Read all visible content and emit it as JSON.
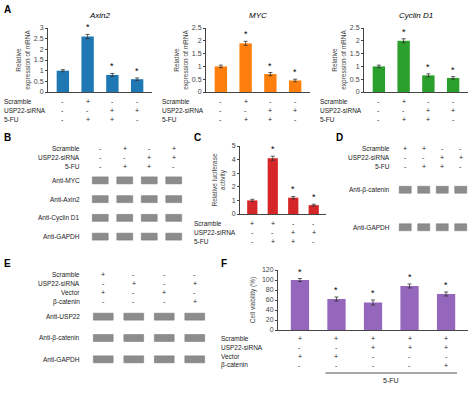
{
  "chart_data": [
    {
      "type": "bar",
      "panel_label": "A",
      "title": "Axin2",
      "y_label": "Relative expression of mRNA",
      "categories": [
        null,
        null,
        null,
        null
      ],
      "values": [
        1.0,
        2.6,
        0.8,
        0.6
      ],
      "errors": [
        0.05,
        0.1,
        0.07,
        0.06
      ],
      "ylim": [
        0,
        3.0
      ],
      "yticks": [
        0,
        0.5,
        1,
        1.5,
        2,
        2.5,
        3
      ],
      "grid": false,
      "tick_labels": "y",
      "annotations": [
        {
          "x": 1,
          "text": "*"
        },
        {
          "x": 2,
          "text": "*"
        },
        {
          "x": 3,
          "text": "*"
        }
      ],
      "conditions": [
        {
          "label": "Scramble",
          "values": [
            "-",
            "+",
            "-",
            "-"
          ]
        },
        {
          "label": "USP22-siRNA",
          "values": [
            "-",
            "-",
            "+",
            "+"
          ]
        },
        {
          "label": "5-FU",
          "values": [
            "-",
            "+",
            "+",
            "-"
          ]
        }
      ]
    },
    {
      "type": "bar",
      "title": "MYC",
      "y_label": "Relative expression of mRNA",
      "categories": [
        null,
        null,
        null,
        null
      ],
      "values": [
        1.0,
        1.9,
        0.7,
        0.45
      ],
      "errors": [
        0.05,
        0.08,
        0.06,
        0.05
      ],
      "ylim": [
        0,
        2.5
      ],
      "yticks": [
        0,
        0.5,
        1,
        1.5,
        2,
        2.5
      ],
      "grid": false,
      "tick_labels": "y",
      "annotations": [
        {
          "x": 1,
          "text": "*"
        },
        {
          "x": 2,
          "text": "*"
        },
        {
          "x": 3,
          "text": "*"
        }
      ],
      "conditions": [
        {
          "label": "Scramble",
          "values": [
            "-",
            "+",
            "-",
            "-"
          ]
        },
        {
          "label": "USP22-siRNA",
          "values": [
            "-",
            "-",
            "+",
            "+"
          ]
        },
        {
          "label": "5-FU",
          "values": [
            "-",
            "+",
            "+",
            "-"
          ]
        }
      ]
    },
    {
      "type": "bar",
      "title": "Cyclin D1",
      "y_label": "Relative expression of mRNA",
      "categories": [
        null,
        null,
        null,
        null
      ],
      "values": [
        1.0,
        2.0,
        0.65,
        0.55
      ],
      "errors": [
        0.05,
        0.08,
        0.06,
        0.05
      ],
      "ylim": [
        0,
        2.5
      ],
      "yticks": [
        0,
        0.5,
        1,
        1.5,
        2,
        2.5
      ],
      "grid": false,
      "tick_labels": "y",
      "annotations": [
        {
          "x": 1,
          "text": "*"
        },
        {
          "x": 2,
          "text": "*"
        },
        {
          "x": 3,
          "text": "*"
        }
      ],
      "conditions": [
        {
          "label": "Scramble",
          "values": [
            "-",
            "+",
            "-",
            "-"
          ]
        },
        {
          "label": "USP22-siRNA",
          "values": [
            "-",
            "-",
            "+",
            "+"
          ]
        },
        {
          "label": "5-FU",
          "values": [
            "-",
            "+",
            "+",
            "-"
          ]
        }
      ]
    },
    {
      "type": "blot",
      "panel_label": "B",
      "color": "#8c8c8c",
      "conditions": [
        {
          "label": "Scramble",
          "values": [
            "-",
            "+",
            "-",
            "+"
          ]
        },
        {
          "label": "USP22-siRNA",
          "values": [
            "-",
            "-",
            "+",
            "+"
          ]
        },
        {
          "label": "5-FU",
          "values": [
            "-",
            "+",
            "+",
            "-"
          ]
        }
      ],
      "bands": [
        "Anti-MYC",
        "Anti-Axin2",
        "Anti-Cyclin D1",
        "Anti-GAPDH"
      ]
    },
    {
      "type": "bar",
      "panel_label": "C",
      "y_label": "Relative luciferase activity",
      "categories": [
        null,
        null,
        null,
        null
      ],
      "values": [
        1.0,
        4.1,
        1.2,
        0.65
      ],
      "errors": [
        0.08,
        0.15,
        0.09,
        0.07
      ],
      "ylim": [
        0,
        5
      ],
      "yticks": [
        0,
        1,
        2,
        3,
        4,
        5
      ],
      "grid": false,
      "tick_labels": "y",
      "annotations": [
        {
          "x": 1,
          "text": "*"
        },
        {
          "x": 2,
          "text": "*"
        },
        {
          "x": 3,
          "text": "*"
        }
      ],
      "conditions": [
        {
          "label": "Scramble",
          "values": [
            "+",
            "+",
            "-",
            "-"
          ]
        },
        {
          "label": "USP22-siRNA",
          "values": [
            "-",
            "-",
            "+",
            "+"
          ]
        },
        {
          "label": "5-FU",
          "values": [
            "-",
            "+",
            "+",
            "-"
          ]
        }
      ]
    },
    {
      "type": "blot",
      "panel_label": "D",
      "color": "#8c8c8c",
      "conditions": [
        {
          "label": "Scramble",
          "values": [
            "+",
            "+",
            "-",
            "-"
          ]
        },
        {
          "label": "USP22-siRNA",
          "values": [
            "-",
            "-",
            "+",
            "+"
          ]
        },
        {
          "label": "5-FU",
          "values": [
            "-",
            "+",
            "+",
            "-"
          ]
        }
      ],
      "bands": [
        "Anti-β-catenin",
        "Anti-GAPDH"
      ]
    },
    {
      "type": "blot",
      "panel_label": "E",
      "color": "#8c8c8c",
      "conditions": [
        {
          "label": "Scramble",
          "values": [
            "+",
            "-",
            "-",
            "-"
          ]
        },
        {
          "label": "USP22-siRNA",
          "values": [
            "-",
            "+",
            "-",
            "+"
          ]
        },
        {
          "label": "Vector",
          "values": [
            "+",
            "-",
            "+",
            "-"
          ]
        },
        {
          "label": "β-catenin",
          "values": [
            "-",
            "-",
            "-",
            "+"
          ]
        }
      ],
      "bands": [
        "Anti-USP22",
        "Anti-β-catenin",
        "Anti-GAPDH"
      ]
    },
    {
      "type": "bar",
      "panel_label": "F",
      "y_label": "Cell viability (%)",
      "categories": [
        null,
        null,
        null,
        null,
        null
      ],
      "values": [
        100,
        62,
        55,
        88,
        72
      ],
      "errors": [
        3,
        4,
        5,
        4,
        4
      ],
      "ylim": [
        0,
        120
      ],
      "yticks": [
        0,
        20,
        40,
        60,
        80,
        100,
        120
      ],
      "grid": false,
      "tick_labels": "y",
      "annotations": [
        {
          "x": 0,
          "text": "*"
        },
        {
          "x": 1,
          "text": "*"
        },
        {
          "x": 2,
          "text": "*"
        },
        {
          "x": 3,
          "text": "*"
        },
        {
          "x": 4,
          "text": "*"
        }
      ],
      "conditions": [
        {
          "label": "Scramble",
          "values": [
            "+",
            "+",
            "+",
            "+",
            "+"
          ]
        },
        {
          "label": "USP22-siRNA",
          "values": [
            "-",
            "-",
            "+",
            "+",
            "+"
          ]
        },
        {
          "label": "Vector",
          "values": [
            "+",
            "+",
            "-",
            "-",
            "-"
          ]
        },
        {
          "label": "β-catenin",
          "values": [
            "-",
            "-",
            "-",
            "-",
            "+"
          ]
        }
      ],
      "bracket": {
        "text": "5-FU",
        "from": 1,
        "to": 4
      }
    }
  ]
}
